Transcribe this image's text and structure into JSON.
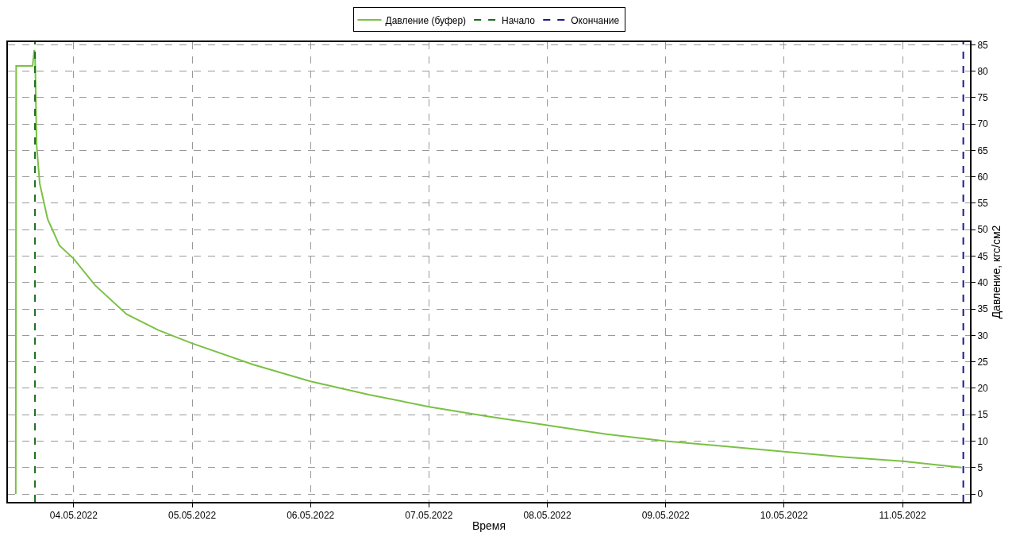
{
  "chart_data": {
    "type": "line",
    "xlabel": "Время",
    "ylabel": "Давление, кгс/см2",
    "x": [
      "2022-05-03T12:15",
      "2022-05-03T12:20",
      "2022-05-03T15:40",
      "2022-05-03T16:00",
      "2022-05-03T16:10",
      "2022-05-03T16:29",
      "2022-05-03T17:07",
      "2022-05-03T18:43",
      "2022-05-03T21:07",
      "2022-05-04T00:00",
      "2022-05-04T04:19",
      "2022-05-04T10:43",
      "2022-05-04T17:07",
      "2022-05-05T00:00",
      "2022-05-05T12:19",
      "2022-05-06T00:00",
      "2022-05-06T11:50",
      "2022-05-07T00:00",
      "2022-05-07T11:50",
      "2022-05-08T00:00",
      "2022-05-08T12:00",
      "2022-05-09T00:00",
      "2022-05-09T12:00",
      "2022-05-10T00:00",
      "2022-05-10T12:00",
      "2022-05-11T00:00",
      "2022-05-11T12:00"
    ],
    "series": [
      {
        "name": "Давление (буфер)",
        "color": "#7ac143",
        "values": [
          0,
          81,
          81,
          84,
          83,
          66,
          58.7,
          52,
          47,
          44.5,
          39.5,
          34,
          31,
          28.5,
          24.5,
          21.3,
          18.8,
          16.5,
          14.7,
          13,
          11.3,
          10,
          9,
          8,
          7,
          6.2,
          5
        ]
      }
    ],
    "ref_lines": [
      {
        "axis": "x",
        "value": "2022-05-03T16:09",
        "label": "Начало",
        "color": "#1a6b1a",
        "line_style": "dashed"
      },
      {
        "axis": "x",
        "value": "2022-05-11T12:19",
        "label": "Окончание",
        "color": "#1a1a8c",
        "line_style": "dashed"
      }
    ],
    "xlim": [
      "2022-05-03T10:40",
      "2022-05-11T13:40"
    ],
    "xticks": [
      {
        "value": "2022-05-04",
        "label": "04.05.2022"
      },
      {
        "value": "2022-05-05",
        "label": "05.05.2022"
      },
      {
        "value": "2022-05-06",
        "label": "06.05.2022"
      },
      {
        "value": "2022-05-07",
        "label": "07.05.2022"
      },
      {
        "value": "2022-05-08",
        "label": "08.05.2022"
      },
      {
        "value": "2022-05-09",
        "label": "09.05.2022"
      },
      {
        "value": "2022-05-10",
        "label": "10.05.2022"
      },
      {
        "value": "2022-05-11",
        "label": "11.05.2022"
      }
    ],
    "ylim": [
      -1.5,
      85.5
    ],
    "yticks": [
      0,
      5,
      10,
      15,
      20,
      25,
      30,
      35,
      40,
      45,
      50,
      55,
      60,
      65,
      70,
      75,
      80,
      85
    ],
    "grid": true,
    "legend": "top",
    "marker": "none",
    "line_style": "solid"
  }
}
